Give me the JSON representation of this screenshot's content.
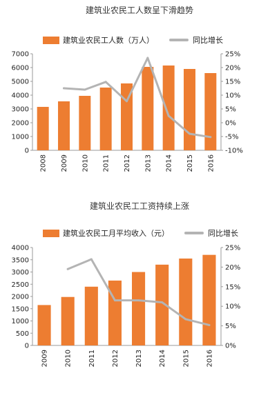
{
  "colors": {
    "bar": "#ED7D31",
    "line": "#B4B4B4",
    "axis": "#9a9a9a"
  },
  "chart_data": [
    {
      "type": "bar",
      "title": "建筑业农民工人数呈下滑趋势",
      "categories": [
        "2008",
        "2009",
        "2010",
        "2011",
        "2012",
        "2013",
        "2014",
        "2015",
        "2016"
      ],
      "series": [
        {
          "name": "建筑业农民工人数（万人）",
          "type": "bar",
          "axis": "left",
          "values": [
            3150,
            3550,
            3950,
            4550,
            4850,
            6050,
            6150,
            5900,
            5600
          ]
        },
        {
          "name": "同比增长",
          "type": "line",
          "axis": "right",
          "values": [
            null,
            12.5,
            12,
            14.8,
            7.8,
            23.5,
            2.5,
            -4,
            -5.2
          ]
        }
      ],
      "left_axis": {
        "ylim": [
          0,
          7000
        ],
        "ticks": [
          "0",
          "1000",
          "2000",
          "3000",
          "4000",
          "5000",
          "6000",
          "7000"
        ]
      },
      "right_axis": {
        "ylim": [
          -10,
          25
        ],
        "ticks": [
          "-10%",
          "-5%",
          "0%",
          "5%",
          "10%",
          "15%",
          "20%",
          "25%"
        ]
      },
      "legend_position": "top"
    },
    {
      "type": "bar",
      "title": "建筑业农民工工资持续上涨",
      "categories": [
        "2009",
        "2010",
        "2011",
        "2012",
        "2013",
        "2014",
        "2015",
        "2016"
      ],
      "series": [
        {
          "name": "建筑业农民工月平均收入（元）",
          "type": "bar",
          "axis": "left",
          "values": [
            1650,
            1980,
            2400,
            2650,
            3000,
            3300,
            3550,
            3700
          ]
        },
        {
          "name": "同比增长",
          "type": "line",
          "axis": "right",
          "values": [
            null,
            19.5,
            22,
            11.5,
            11.5,
            11,
            6.7,
            5.2
          ]
        }
      ],
      "left_axis": {
        "ylim": [
          0,
          4000
        ],
        "ticks": [
          "0",
          "500",
          "1000",
          "1500",
          "2000",
          "2500",
          "3000",
          "3500",
          "4000"
        ]
      },
      "right_axis": {
        "ylim": [
          0,
          25
        ],
        "ticks": [
          "0%",
          "5%",
          "10%",
          "15%",
          "20%",
          "25%"
        ]
      },
      "legend_position": "top"
    }
  ]
}
